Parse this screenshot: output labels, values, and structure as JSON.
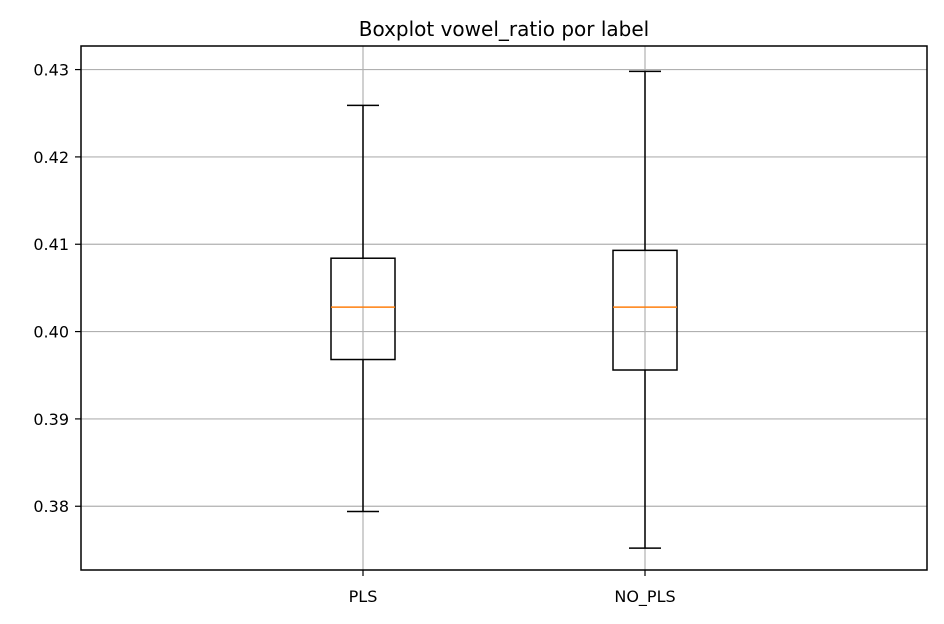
{
  "chart_data": {
    "type": "boxplot",
    "title": "Boxplot vowel_ratio por label",
    "xlabel": "",
    "ylabel": "",
    "categories": [
      "PLS",
      "NO_PLS"
    ],
    "boxes": [
      {
        "label": "PLS",
        "whisker_low": 0.3794,
        "q1": 0.3968,
        "median": 0.4028,
        "q3": 0.4084,
        "whisker_high": 0.4259
      },
      {
        "label": "NO_PLS",
        "whisker_low": 0.3752,
        "q1": 0.3956,
        "median": 0.4028,
        "q3": 0.4093,
        "whisker_high": 0.4298
      }
    ],
    "ylim": [
      0.3727,
      0.4327
    ],
    "yticks": [
      0.38,
      0.39,
      0.4,
      0.41,
      0.42,
      0.43
    ],
    "ytick_labels": [
      "0.38",
      "0.39",
      "0.40",
      "0.41",
      "0.42",
      "0.43"
    ],
    "grid": true,
    "colors": {
      "box": "#000000",
      "median": "#ff7f0e",
      "grid": "#b0b0b0"
    }
  }
}
